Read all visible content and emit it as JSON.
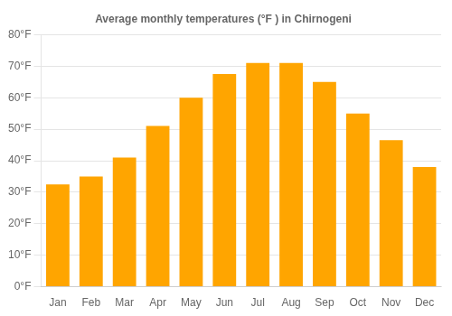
{
  "chart_data": {
    "type": "bar",
    "title": "Average monthly temperatures (°F ) in Chirnogeni",
    "categories": [
      "Jan",
      "Feb",
      "Mar",
      "Apr",
      "May",
      "Jun",
      "Jul",
      "Aug",
      "Sep",
      "Oct",
      "Nov",
      "Dec"
    ],
    "values": [
      32.5,
      35.0,
      41.0,
      51.0,
      60.0,
      67.5,
      71.0,
      71.0,
      65.0,
      55.0,
      46.5,
      38.0
    ],
    "color": "#FFA500",
    "ylim": [
      0,
      80
    ],
    "yticks": [
      {
        "value": 0,
        "label": "0°F"
      },
      {
        "value": 10,
        "label": "10°F"
      },
      {
        "value": 20,
        "label": "20°F"
      },
      {
        "value": 30,
        "label": "30°F"
      },
      {
        "value": 40,
        "label": "40°F"
      },
      {
        "value": 50,
        "label": "50°F"
      },
      {
        "value": 60,
        "label": "60°F"
      },
      {
        "value": 70,
        "label": "70°F"
      },
      {
        "value": 80,
        "label": "80°F"
      }
    ],
    "grid": true
  }
}
